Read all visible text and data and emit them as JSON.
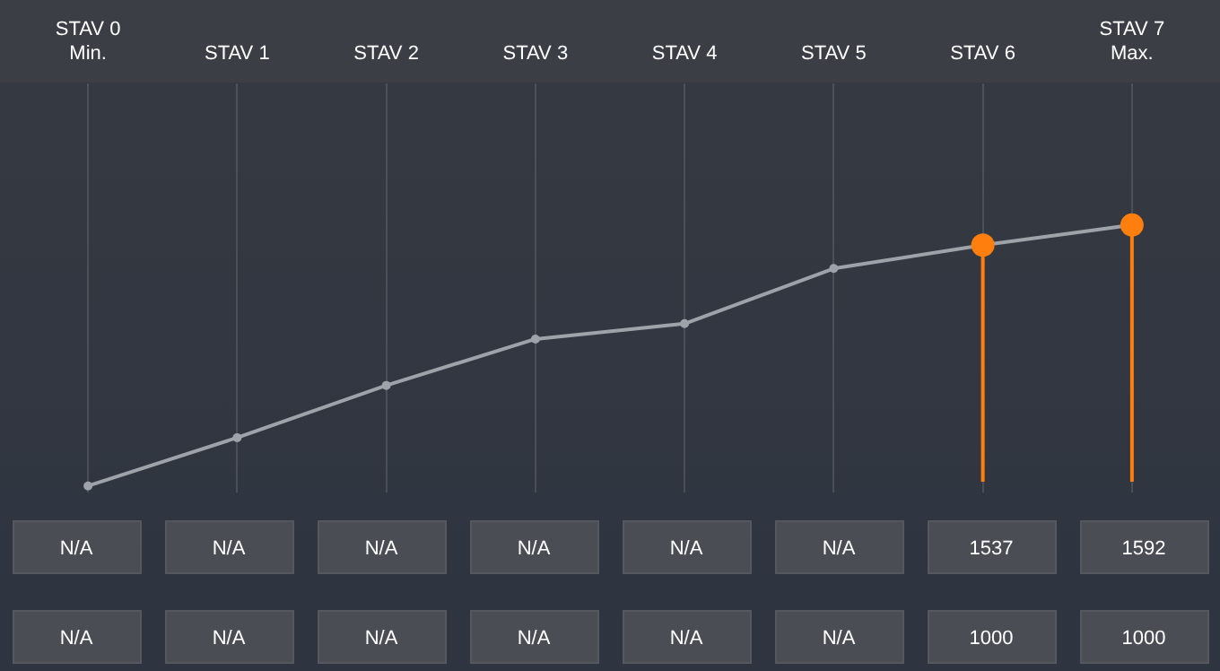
{
  "chart_data": {
    "type": "line",
    "categories": [
      "STAV 0\nMin.",
      "STAV 1",
      "STAV 2",
      "STAV 3",
      "STAV 4",
      "STAV 5",
      "STAV 6",
      "STAV 7\nMax."
    ],
    "series": [
      {
        "color": "#9ea3aa",
        "colors": [
          null,
          null,
          null,
          null,
          null,
          null,
          "#ff7f0e",
          "#ff7f0e"
        ],
        "values": [
          878,
          1010,
          1153,
          1280,
          1322,
          1473,
          1537,
          1592
        ],
        "value_labels": [
          "N/A",
          "N/A",
          "N/A",
          "N/A",
          "N/A",
          "N/A",
          "1537",
          "1592"
        ]
      }
    ],
    "ref_lines": [
      {
        "axis": "x",
        "value": "STAV 6",
        "color": "#ff7f0e"
      },
      {
        "axis": "x",
        "value": "STAV 7\nMax.",
        "color": "#ff7f0e"
      }
    ],
    "ylim": [
      860,
      1980
    ],
    "grid": "x",
    "marker": "circle",
    "legend": false,
    "tick_labels": "x",
    "annotations": [
      "N/A",
      "N/A",
      "N/A",
      "N/A",
      "N/A",
      "N/A",
      "1000",
      "1000"
    ]
  }
}
